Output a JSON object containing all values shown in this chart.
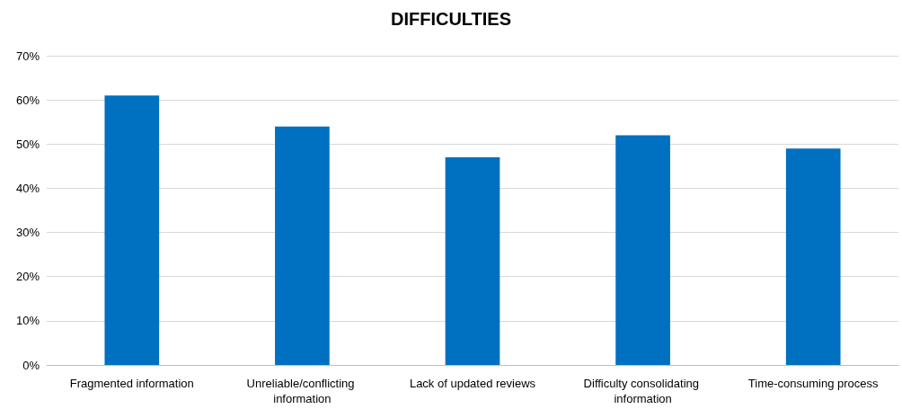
{
  "chart_data": {
    "type": "bar",
    "title": "DIFFICULTIES",
    "categories": [
      "Fragmented information",
      "Unreliable/conflicting information",
      "Lack of updated reviews",
      "Difficulty consolidating information",
      "Time-consuming process"
    ],
    "values": [
      61,
      54,
      47,
      52,
      49
    ],
    "color": "#0070c0",
    "ylim": [
      0,
      70
    ],
    "yticks": [
      {
        "value": 0,
        "label": "0%"
      },
      {
        "value": 10,
        "label": "10%"
      },
      {
        "value": 20,
        "label": "20%"
      },
      {
        "value": 30,
        "label": "30%"
      },
      {
        "value": 40,
        "label": "40%"
      },
      {
        "value": 50,
        "label": "50%"
      },
      {
        "value": 60,
        "label": "60%"
      },
      {
        "value": 70,
        "label": "70%"
      }
    ],
    "grid": "y"
  }
}
